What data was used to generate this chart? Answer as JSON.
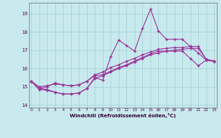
{
  "xlabel": "Windchill (Refroidissement éolien,°C)",
  "background_color": "#c8eaee",
  "line_color": "#993399",
  "grid_color": "#a0cdd0",
  "x_values": [
    0,
    1,
    2,
    3,
    4,
    5,
    6,
    7,
    8,
    9,
    10,
    11,
    12,
    13,
    14,
    15,
    16,
    17,
    18,
    19,
    20,
    21,
    22,
    23
  ],
  "series1": [
    15.3,
    14.85,
    14.8,
    14.7,
    14.6,
    14.6,
    14.65,
    14.9,
    15.5,
    15.35,
    16.65,
    17.55,
    17.25,
    16.95,
    18.2,
    19.25,
    18.05,
    17.6,
    17.6,
    17.6,
    17.2,
    16.85,
    16.45,
    16.4
  ],
  "series2": [
    15.3,
    15.0,
    15.05,
    15.15,
    15.1,
    15.05,
    15.1,
    15.3,
    15.65,
    15.8,
    16.05,
    16.2,
    16.4,
    16.55,
    16.75,
    16.9,
    17.05,
    17.1,
    17.15,
    17.15,
    17.2,
    17.2,
    16.5,
    16.4
  ],
  "series3": [
    15.3,
    14.9,
    14.85,
    14.7,
    14.6,
    14.6,
    14.65,
    14.9,
    15.45,
    15.6,
    15.8,
    16.0,
    16.15,
    16.35,
    16.55,
    16.75,
    16.85,
    16.95,
    17.0,
    17.05,
    17.1,
    17.1,
    16.5,
    16.4
  ],
  "series4": [
    15.3,
    14.9,
    15.0,
    15.2,
    15.1,
    15.05,
    15.1,
    15.3,
    15.6,
    15.65,
    15.85,
    16.05,
    16.2,
    16.4,
    16.6,
    16.8,
    16.95,
    16.95,
    16.95,
    16.95,
    16.55,
    16.15,
    16.45,
    16.4
  ],
  "ylim": [
    13.85,
    19.6
  ],
  "yticks": [
    14,
    15,
    16,
    17,
    18,
    19
  ],
  "xlim": [
    -0.3,
    23.3
  ]
}
